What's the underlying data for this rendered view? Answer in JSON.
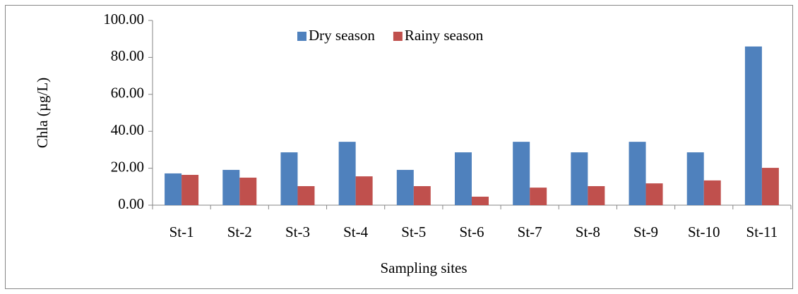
{
  "chart_data": {
    "type": "bar",
    "x_label": "Sampling sites",
    "y_label": "Chla (µg/L)",
    "categories": [
      "St-1",
      "St-2",
      "St-3",
      "St-4",
      "St-5",
      "St-6",
      "St-7",
      "St-8",
      "St-9",
      "St-10",
      "St-11"
    ],
    "series": [
      {
        "name": "Dry season",
        "color": "#4f81bd",
        "values": [
          17.2,
          19.1,
          28.6,
          34.3,
          19.1,
          28.6,
          34.3,
          28.6,
          34.3,
          28.6,
          85.9
        ]
      },
      {
        "name": "Rainy season",
        "color": "#c0504d",
        "values": [
          16.4,
          14.9,
          10.3,
          15.6,
          10.3,
          4.6,
          9.5,
          10.3,
          11.8,
          13.4,
          20.2
        ]
      }
    ],
    "ylim": [
      0,
      100
    ],
    "yticks": [
      {
        "value": 0,
        "label": "0.00"
      },
      {
        "value": 20,
        "label": "20.00"
      },
      {
        "value": 40,
        "label": "40.00"
      },
      {
        "value": 60,
        "label": "60.00"
      },
      {
        "value": 80,
        "label": "80.00"
      },
      {
        "value": 100,
        "label": "100.00"
      }
    ],
    "grid": false,
    "legend": "top"
  }
}
